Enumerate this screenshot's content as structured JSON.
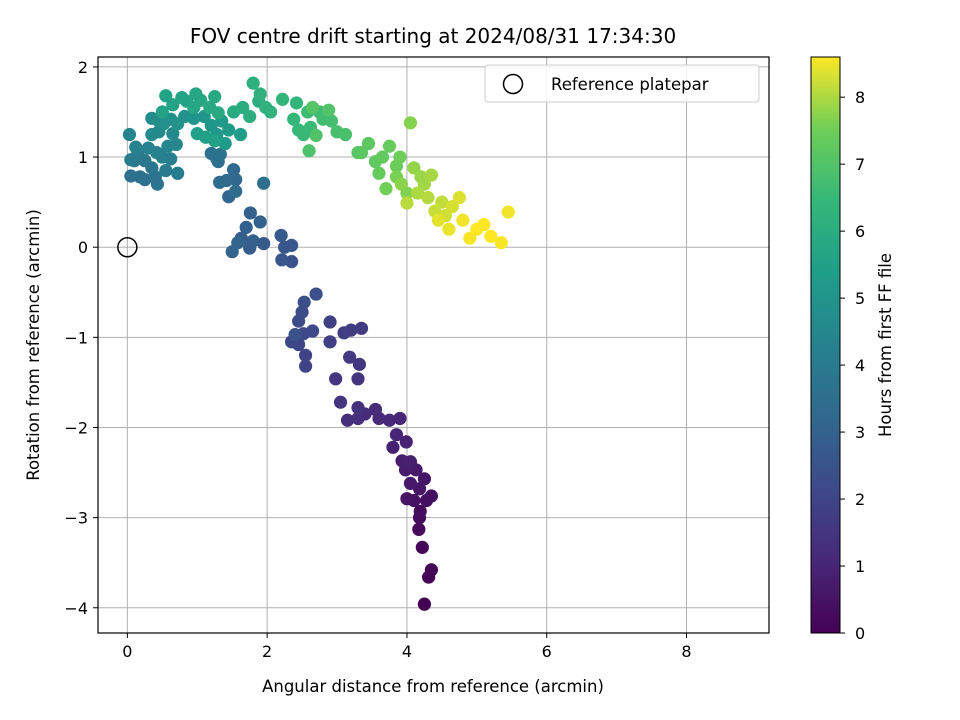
{
  "chart_data": {
    "type": "scatter",
    "title": "FOV centre drift starting at 2024/08/31 17:34:30",
    "xlabel": "Angular distance from reference (arcmin)",
    "ylabel": "Rotation from reference (arcmin)",
    "xlim": [
      -0.42,
      9.18
    ],
    "ylim": [
      -4.28,
      2.11
    ],
    "x_ticks": [
      0,
      2,
      4,
      6,
      8
    ],
    "y_ticks": [
      -4,
      -3,
      -2,
      -1,
      0,
      1,
      2
    ],
    "grid": true,
    "legend": {
      "placement": "top-right",
      "entries": [
        "Reference platepar"
      ]
    },
    "reference_point": {
      "x": 0,
      "y": 0,
      "label": "Reference platepar"
    },
    "colorbar": {
      "label": "Hours from first FF file",
      "range": [
        0,
        8.6
      ],
      "ticks": [
        0,
        1,
        2,
        3,
        4,
        5,
        6,
        7,
        8
      ],
      "colormap": "viridis"
    },
    "series": [
      {
        "color_by": "hours_from_first_ff_file",
        "points": [
          [
            4.25,
            -3.96,
            0.0
          ],
          [
            4.31,
            -3.66,
            0.05
          ],
          [
            4.35,
            -3.58,
            0.1
          ],
          [
            4.22,
            -3.33,
            0.15
          ],
          [
            4.17,
            -3.13,
            0.2
          ],
          [
            4.18,
            -3.0,
            0.25
          ],
          [
            4.19,
            -2.93,
            0.3
          ],
          [
            4.28,
            -2.81,
            0.35
          ],
          [
            4.35,
            -2.76,
            0.4
          ],
          [
            4.1,
            -2.81,
            0.45
          ],
          [
            4.0,
            -2.79,
            0.5
          ],
          [
            4.18,
            -2.68,
            0.55
          ],
          [
            4.25,
            -2.57,
            0.6
          ],
          [
            4.05,
            -2.62,
            0.65
          ],
          [
            4.13,
            -2.47,
            0.7
          ],
          [
            3.98,
            -2.47,
            0.75
          ],
          [
            3.93,
            -2.37,
            0.8
          ],
          [
            4.05,
            -2.38,
            0.85
          ],
          [
            3.8,
            -2.22,
            0.9
          ],
          [
            3.99,
            -2.16,
            0.95
          ],
          [
            3.85,
            -2.08,
            1.0
          ],
          [
            3.9,
            -1.9,
            1.05
          ],
          [
            3.75,
            -1.92,
            1.1
          ],
          [
            3.6,
            -1.9,
            1.15
          ],
          [
            3.55,
            -1.8,
            1.2
          ],
          [
            3.4,
            -1.85,
            1.25
          ],
          [
            3.3,
            -1.9,
            1.3
          ],
          [
            3.15,
            -1.92,
            1.35
          ],
          [
            3.3,
            -1.78,
            1.4
          ],
          [
            3.05,
            -1.72,
            1.45
          ],
          [
            3.3,
            -1.46,
            1.5
          ],
          [
            2.98,
            -1.46,
            1.55
          ],
          [
            3.32,
            -1.3,
            1.6
          ],
          [
            3.18,
            -1.22,
            1.65
          ],
          [
            3.35,
            -0.9,
            1.7
          ],
          [
            3.2,
            -0.92,
            1.75
          ],
          [
            3.1,
            -0.95,
            1.8
          ],
          [
            2.9,
            -1.05,
            1.85
          ],
          [
            2.9,
            -0.83,
            1.9
          ],
          [
            2.55,
            -1.32,
            1.95
          ],
          [
            2.55,
            -1.2,
            2.0
          ],
          [
            2.45,
            -1.08,
            2.05
          ],
          [
            2.35,
            -1.05,
            2.1
          ],
          [
            2.65,
            -0.93,
            2.15
          ],
          [
            2.52,
            -0.96,
            2.2
          ],
          [
            2.45,
            -0.82,
            2.25
          ],
          [
            2.5,
            -0.72,
            2.3
          ],
          [
            2.53,
            -0.61,
            2.35
          ],
          [
            2.7,
            -0.52,
            2.4
          ],
          [
            2.4,
            -0.97,
            2.45
          ],
          [
            2.35,
            -0.16,
            2.5
          ],
          [
            2.21,
            -0.14,
            2.55
          ],
          [
            2.25,
            0.0,
            2.6
          ],
          [
            2.35,
            0.02,
            2.65
          ],
          [
            2.2,
            0.13,
            2.7
          ],
          [
            1.95,
            0.04,
            2.75
          ],
          [
            1.75,
            -0.01,
            2.8
          ],
          [
            1.63,
            0.1,
            2.85
          ],
          [
            1.8,
            0.07,
            2.9
          ],
          [
            1.7,
            0.22,
            2.95
          ],
          [
            1.76,
            0.38,
            3.0
          ],
          [
            1.9,
            0.28,
            3.05
          ],
          [
            1.5,
            -0.05,
            3.1
          ],
          [
            1.58,
            0.05,
            3.15
          ],
          [
            1.45,
            0.56,
            3.2
          ],
          [
            1.55,
            0.75,
            3.25
          ],
          [
            1.52,
            0.86,
            3.3
          ],
          [
            1.42,
            0.74,
            3.35
          ],
          [
            1.55,
            0.62,
            3.4
          ],
          [
            1.32,
            0.72,
            3.45
          ],
          [
            1.95,
            0.71,
            3.5
          ],
          [
            1.28,
            0.98,
            3.55
          ],
          [
            1.3,
            0.95,
            3.6
          ],
          [
            1.2,
            1.04,
            3.65
          ],
          [
            1.33,
            1.03,
            3.7
          ],
          [
            0.05,
            0.79,
            3.55
          ],
          [
            0.18,
            0.78,
            3.6
          ],
          [
            0.25,
            0.75,
            3.65
          ],
          [
            0.4,
            0.78,
            3.7
          ],
          [
            0.43,
            0.7,
            3.75
          ],
          [
            0.35,
            0.88,
            3.8
          ],
          [
            0.1,
            0.96,
            3.85
          ],
          [
            0.25,
            0.96,
            3.9
          ],
          [
            0.15,
            1.05,
            3.95
          ],
          [
            0.05,
            0.97,
            4.0
          ],
          [
            0.55,
            0.85,
            4.05
          ],
          [
            0.72,
            0.82,
            4.1
          ],
          [
            0.62,
            0.98,
            4.15
          ],
          [
            0.5,
            1.0,
            4.2
          ],
          [
            0.42,
            1.05,
            4.25
          ],
          [
            0.3,
            1.1,
            4.3
          ],
          [
            0.12,
            1.11,
            4.35
          ],
          [
            0.03,
            1.25,
            4.4
          ],
          [
            0.58,
            1.12,
            4.45
          ],
          [
            0.7,
            1.14,
            4.5
          ],
          [
            0.65,
            1.26,
            4.55
          ],
          [
            0.45,
            1.28,
            4.6
          ],
          [
            0.35,
            1.25,
            4.65
          ],
          [
            0.35,
            1.43,
            4.7
          ],
          [
            0.45,
            1.4,
            4.75
          ],
          [
            0.52,
            1.37,
            4.8
          ],
          [
            0.62,
            1.42,
            4.85
          ],
          [
            0.72,
            1.37,
            4.9
          ],
          [
            0.82,
            1.45,
            4.95
          ],
          [
            0.95,
            1.43,
            5.0
          ],
          [
            1.1,
            1.45,
            5.05
          ],
          [
            1.2,
            1.35,
            5.1
          ],
          [
            1.35,
            1.4,
            5.15
          ],
          [
            1.28,
            1.25,
            5.2
          ],
          [
            1.45,
            1.3,
            5.25
          ],
          [
            1.4,
            1.15,
            5.3
          ],
          [
            1.62,
            1.25,
            5.35
          ],
          [
            1.0,
            1.26,
            5.4
          ],
          [
            1.12,
            1.22,
            5.45
          ],
          [
            1.25,
            1.18,
            5.5
          ],
          [
            0.5,
            1.5,
            5.55
          ],
          [
            0.65,
            1.58,
            5.6
          ],
          [
            0.85,
            1.62,
            5.65
          ],
          [
            0.95,
            1.55,
            5.7
          ],
          [
            1.05,
            1.63,
            5.75
          ],
          [
            1.18,
            1.55,
            5.8
          ],
          [
            1.3,
            1.49,
            5.85
          ],
          [
            1.52,
            1.5,
            5.9
          ],
          [
            1.65,
            1.55,
            6.0
          ],
          [
            1.75,
            1.45,
            6.05
          ],
          [
            0.55,
            1.68,
            5.58
          ],
          [
            0.98,
            1.7,
            5.72
          ],
          [
            1.25,
            1.67,
            5.82
          ],
          [
            0.78,
            1.66,
            5.62
          ],
          [
            1.88,
            1.62,
            6.05
          ],
          [
            1.8,
            1.82,
            6.1
          ],
          [
            1.9,
            1.7,
            6.15
          ],
          [
            1.98,
            1.55,
            6.2
          ],
          [
            2.05,
            1.5,
            6.25
          ],
          [
            2.22,
            1.64,
            6.3
          ],
          [
            2.42,
            1.6,
            6.35
          ],
          [
            2.38,
            1.42,
            6.4
          ],
          [
            2.45,
            1.3,
            6.45
          ],
          [
            2.52,
            1.25,
            6.5
          ],
          [
            2.62,
            1.33,
            6.55
          ],
          [
            2.58,
            1.5,
            6.6
          ],
          [
            2.75,
            1.5,
            6.65
          ],
          [
            2.8,
            1.42,
            6.7
          ],
          [
            2.92,
            1.4,
            6.75
          ],
          [
            3.0,
            1.28,
            6.8
          ],
          [
            3.12,
            1.25,
            6.85
          ],
          [
            2.6,
            1.07,
            6.9
          ],
          [
            2.7,
            1.24,
            6.95
          ],
          [
            2.88,
            1.52,
            7.0
          ],
          [
            2.65,
            1.55,
            7.05
          ],
          [
            3.3,
            1.05,
            7.1
          ],
          [
            3.35,
            1.05,
            7.15
          ],
          [
            3.45,
            1.15,
            7.2
          ],
          [
            3.55,
            0.95,
            7.25
          ],
          [
            3.65,
            1.0,
            7.3
          ],
          [
            3.6,
            0.82,
            7.35
          ],
          [
            3.75,
            1.12,
            7.4
          ],
          [
            3.85,
            0.9,
            7.45
          ],
          [
            3.9,
            1.0,
            7.5
          ],
          [
            3.7,
            0.65,
            7.55
          ],
          [
            3.85,
            0.78,
            7.6
          ],
          [
            4.0,
            0.6,
            7.65
          ],
          [
            4.05,
            1.38,
            7.7
          ],
          [
            3.92,
            0.7,
            7.75
          ],
          [
            4.1,
            0.88,
            7.8
          ],
          [
            4.2,
            0.78,
            7.85
          ],
          [
            4.25,
            0.7,
            7.9
          ],
          [
            4.35,
            0.8,
            7.95
          ],
          [
            4.15,
            0.6,
            8.0
          ],
          [
            4.3,
            0.55,
            8.05
          ],
          [
            4.0,
            0.49,
            8.1
          ],
          [
            4.5,
            0.5,
            8.15
          ],
          [
            4.4,
            0.4,
            8.2
          ],
          [
            4.55,
            0.35,
            8.25
          ],
          [
            4.65,
            0.45,
            8.3
          ],
          [
            4.75,
            0.55,
            8.35
          ],
          [
            4.45,
            0.3,
            8.4
          ],
          [
            4.6,
            0.2,
            8.45
          ],
          [
            4.8,
            0.3,
            8.5
          ],
          [
            4.9,
            0.1,
            8.55
          ],
          [
            5.0,
            0.2,
            8.6
          ],
          [
            5.1,
            0.25,
            8.62
          ],
          [
            5.2,
            0.12,
            8.6
          ],
          [
            5.35,
            0.05,
            8.55
          ],
          [
            5.45,
            0.39,
            8.5
          ]
        ]
      }
    ]
  }
}
